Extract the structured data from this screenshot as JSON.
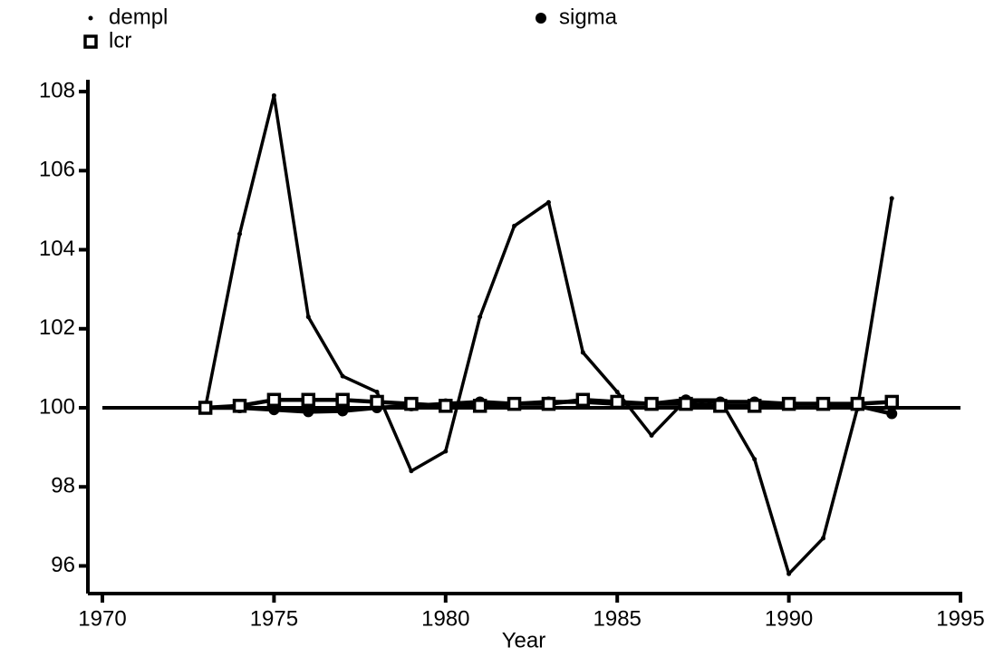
{
  "chart_data": {
    "type": "line",
    "x": [
      1973,
      1974,
      1975,
      1976,
      1977,
      1978,
      1979,
      1980,
      1981,
      1982,
      1983,
      1984,
      1985,
      1986,
      1987,
      1988,
      1989,
      1990,
      1991,
      1992,
      1993
    ],
    "series": [
      {
        "name": "dempl",
        "color": "#000000",
        "marker": "dot",
        "values": [
          100,
          104.4,
          107.9,
          102.3,
          100.8,
          100.4,
          98.4,
          98.9,
          102.3,
          104.6,
          105.2,
          101.4,
          100.4,
          99.3,
          100.2,
          100.2,
          98.7,
          95.8,
          96.7,
          100,
          105.3
        ]
      },
      {
        "name": "sigma",
        "color": "#000000",
        "marker": "circle",
        "values": [
          100,
          100,
          99.95,
          99.9,
          99.92,
          100,
          100.05,
          100.1,
          100.15,
          100.1,
          100.15,
          100.15,
          100.1,
          100.1,
          100.2,
          100.15,
          100.15,
          100.1,
          100.1,
          100.05,
          99.85
        ]
      },
      {
        "name": "lcr",
        "color": "#000000",
        "marker": "square",
        "values": [
          100,
          100.05,
          100.2,
          100.2,
          100.2,
          100.15,
          100.1,
          100.05,
          100.05,
          100.1,
          100.1,
          100.2,
          100.15,
          100.1,
          100.1,
          100.05,
          100.05,
          100.1,
          100.1,
          100.1,
          100.15
        ]
      }
    ],
    "refline": 100,
    "xlabel": "Year",
    "xlim": [
      1970,
      1995
    ],
    "xticks": [
      1970,
      1975,
      1980,
      1985,
      1990,
      1995
    ],
    "ylim": [
      95.3,
      108.3
    ],
    "yticks": [
      96,
      98,
      100,
      102,
      104,
      106,
      108
    ]
  }
}
